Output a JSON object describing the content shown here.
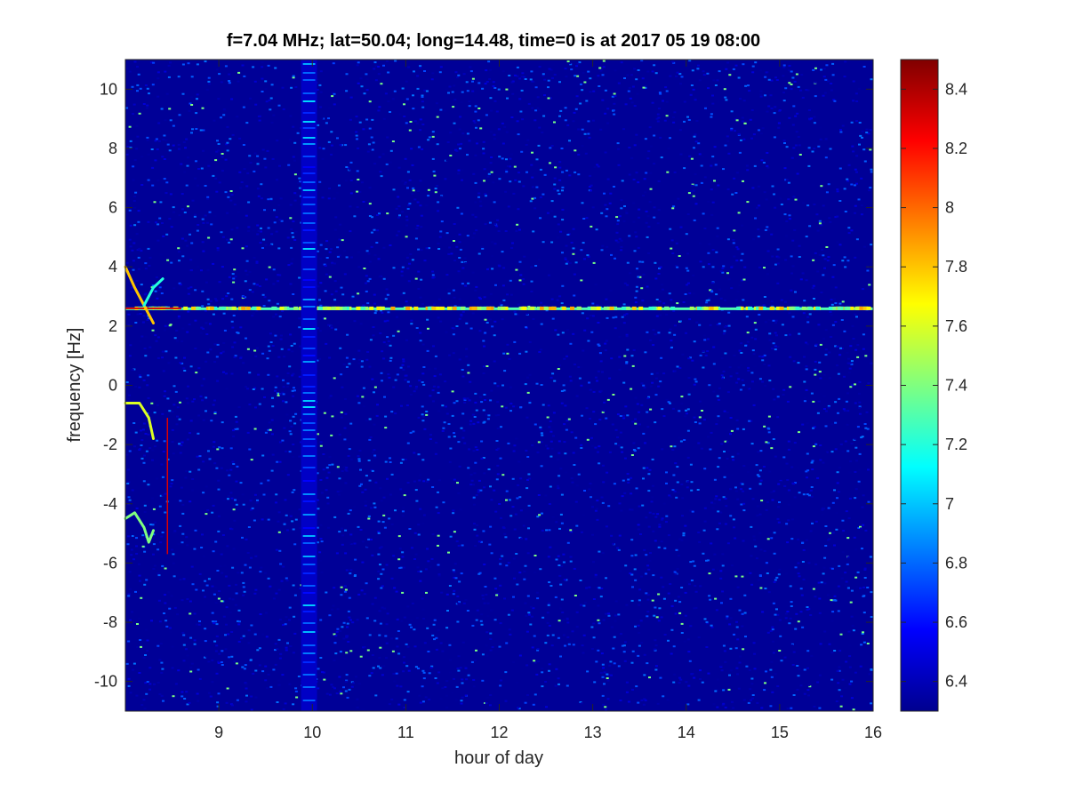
{
  "chart_data": {
    "type": "heatmap",
    "title": "f=7.04 MHz;  lat=50.04; long=14.48, time=0 is at 2017 05 19 08:00",
    "xlabel": "hour of day",
    "ylabel": "frequency [Hz]",
    "xlim": [
      8,
      16
    ],
    "ylim": [
      -11,
      11
    ],
    "xticks": [
      9,
      10,
      11,
      12,
      13,
      14,
      15,
      16
    ],
    "yticks": [
      -10,
      -8,
      -6,
      -4,
      -2,
      0,
      2,
      4,
      6,
      8,
      10
    ],
    "colormap": "jet",
    "clim": [
      6.3,
      8.5
    ],
    "colorbar_ticks": [
      6.4,
      6.6,
      6.8,
      7,
      7.2,
      7.4,
      7.6,
      7.8,
      8,
      8.2,
      8.4
    ],
    "background_level": 6.35,
    "features": [
      {
        "kind": "horizontal-line",
        "y": 2.6,
        "x_range": [
          8,
          16
        ],
        "level": 7.3
      },
      {
        "kind": "curve",
        "points": [
          [
            8.0,
            4.0
          ],
          [
            8.1,
            3.3
          ],
          [
            8.2,
            2.7
          ],
          [
            8.3,
            2.1
          ]
        ],
        "level": 7.8
      },
      {
        "kind": "curve",
        "points": [
          [
            8.2,
            2.7
          ],
          [
            8.3,
            3.3
          ],
          [
            8.4,
            3.6
          ]
        ],
        "level": 7.2
      },
      {
        "kind": "curve",
        "points": [
          [
            8.0,
            -0.6
          ],
          [
            8.15,
            -0.6
          ],
          [
            8.25,
            -1.1
          ],
          [
            8.3,
            -1.8
          ]
        ],
        "level": 7.6
      },
      {
        "kind": "curve",
        "points": [
          [
            8.0,
            -4.5
          ],
          [
            8.1,
            -4.3
          ],
          [
            8.2,
            -4.8
          ],
          [
            8.25,
            -5.3
          ],
          [
            8.3,
            -4.9
          ]
        ],
        "level": 7.4
      },
      {
        "kind": "vertical-line",
        "x": 8.45,
        "y_range": [
          -5.7,
          -1.1
        ],
        "level": 8.3
      },
      {
        "kind": "vertical-band",
        "x_range": [
          9.88,
          10.05
        ],
        "level": 6.45
      }
    ]
  }
}
